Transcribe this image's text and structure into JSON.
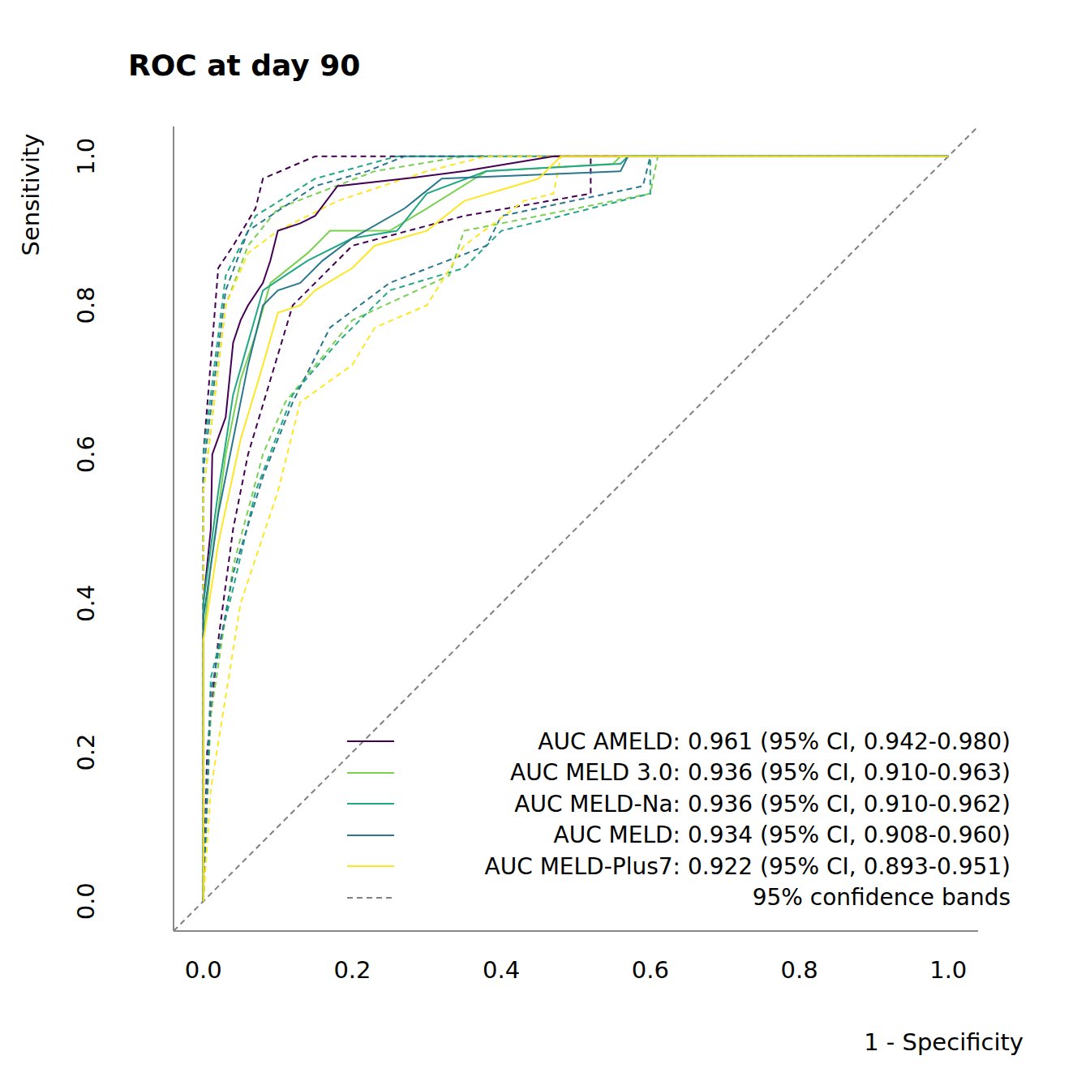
{
  "chart_data": {
    "type": "line",
    "title": "ROC at day 90",
    "x_label": "1 - Specificity",
    "y_label": "Sensitivity",
    "xlim": [
      -0.04,
      1.04
    ],
    "ylim": [
      -0.04,
      1.04
    ],
    "xticks": [
      {
        "value": 0,
        "label": "0.0"
      },
      {
        "value": 0.2,
        "label": "0.2"
      },
      {
        "value": 0.4,
        "label": "0.4"
      },
      {
        "value": 0.6,
        "label": "0.6"
      },
      {
        "value": 0.8,
        "label": "0.8"
      },
      {
        "value": 1,
        "label": "1.0"
      }
    ],
    "yticks": [
      {
        "value": 0,
        "label": "0.0"
      },
      {
        "value": 0.2,
        "label": "0.2"
      },
      {
        "value": 0.4,
        "label": "0.4"
      },
      {
        "value": 0.6,
        "label": "0.6"
      },
      {
        "value": 0.8,
        "label": "0.8"
      },
      {
        "value": 1,
        "label": "1.0"
      }
    ],
    "legend": "lower right",
    "band_label": "95% confidence bands",
    "series": [
      {
        "name": "AUC AMELD: 0.961 (95% CI, 0.942-0.980)",
        "color": "#440154",
        "x": [
          0,
          0,
          0.01,
          0.012,
          0.03,
          0.04,
          0.05,
          0.06,
          0.08,
          0.09,
          0.1,
          0.13,
          0.15,
          0.18,
          0.27,
          0.35,
          0.47,
          1
        ],
        "values": [
          0,
          0.4,
          0.5,
          0.6,
          0.65,
          0.75,
          0.78,
          0.8,
          0.83,
          0.86,
          0.9,
          0.91,
          0.92,
          0.96,
          0.97,
          0.98,
          1,
          1
        ],
        "ci_band": {
          "upper": {
            "x": [
              0,
              0,
              0.02,
              0.04,
              0.07,
              0.08,
              0.15,
              1
            ],
            "values": [
              0,
              0.6,
              0.85,
              0.88,
              0.93,
              0.97,
              1,
              1
            ]
          },
          "lower": {
            "x": [
              0,
              0.005,
              0.02,
              0.04,
              0.06,
              0.09,
              0.12,
              0.2,
              0.35,
              0.52,
              0.52,
              1
            ],
            "values": [
              0,
              0.2,
              0.35,
              0.5,
              0.6,
              0.7,
              0.8,
              0.88,
              0.92,
              0.95,
              1,
              1
            ]
          }
        }
      },
      {
        "name": "AUC MELD 3.0: 0.936 (95% CI, 0.910-0.963)",
        "color": "#7AD151",
        "x": [
          0,
          0,
          0.01,
          0.03,
          0.05,
          0.07,
          0.09,
          0.14,
          0.17,
          0.25,
          0.3,
          0.38,
          0.55,
          0.56,
          1
        ],
        "values": [
          0,
          0.35,
          0.45,
          0.6,
          0.7,
          0.76,
          0.83,
          0.87,
          0.9,
          0.9,
          0.93,
          0.98,
          0.99,
          1,
          1
        ],
        "ci_band": {
          "upper": {
            "x": [
              0,
              0,
              0.03,
              0.06,
              0.1,
              0.23,
              0.35,
              1
            ],
            "values": [
              0,
              0.55,
              0.8,
              0.88,
              0.93,
              0.98,
              1,
              1
            ]
          },
          "lower": {
            "x": [
              0,
              0.01,
              0.04,
              0.08,
              0.11,
              0.2,
              0.33,
              0.35,
              0.6,
              0.61,
              1
            ],
            "values": [
              0,
              0.25,
              0.45,
              0.6,
              0.67,
              0.78,
              0.84,
              0.9,
              0.95,
              1,
              1
            ]
          }
        }
      },
      {
        "name": "AUC MELD-Na: 0.936 (95% CI, 0.910-0.962)",
        "color": "#22A884",
        "x": [
          0,
          0,
          0.02,
          0.04,
          0.06,
          0.08,
          0.11,
          0.14,
          0.2,
          0.26,
          0.3,
          0.38,
          0.56,
          0.57,
          1
        ],
        "values": [
          0,
          0.4,
          0.55,
          0.68,
          0.75,
          0.82,
          0.84,
          0.86,
          0.89,
          0.9,
          0.95,
          0.98,
          0.99,
          1,
          1
        ],
        "ci_band": {
          "upper": {
            "x": [
              0,
              0,
              0.03,
              0.07,
              0.15,
              0.26,
              1
            ],
            "values": [
              0,
              0.6,
              0.84,
              0.92,
              0.97,
              1,
              1
            ]
          },
          "lower": {
            "x": [
              0,
              0.01,
              0.04,
              0.07,
              0.12,
              0.18,
              0.25,
              0.35,
              0.4,
              0.6,
              0.6,
              1
            ],
            "values": [
              0,
              0.3,
              0.42,
              0.55,
              0.68,
              0.75,
              0.82,
              0.85,
              0.9,
              0.95,
              1,
              1
            ]
          }
        }
      },
      {
        "name": "AUC MELD: 0.934 (95% CI, 0.908-0.960)",
        "color": "#2A788E",
        "x": [
          0,
          0,
          0.02,
          0.04,
          0.06,
          0.08,
          0.1,
          0.13,
          0.16,
          0.2,
          0.27,
          0.32,
          0.56,
          0.57,
          1
        ],
        "values": [
          0,
          0.38,
          0.52,
          0.62,
          0.72,
          0.8,
          0.82,
          0.83,
          0.86,
          0.89,
          0.93,
          0.97,
          0.98,
          1,
          1
        ],
        "ci_band": {
          "upper": {
            "x": [
              0,
              0,
              0.03,
              0.06,
              0.15,
              0.22,
              0.27,
              1
            ],
            "values": [
              0,
              0.58,
              0.82,
              0.9,
              0.96,
              0.98,
              1,
              1
            ]
          },
          "lower": {
            "x": [
              0,
              0.01,
              0.04,
              0.08,
              0.12,
              0.17,
              0.25,
              0.38,
              0.4,
              0.59,
              0.6,
              1
            ],
            "values": [
              0,
              0.28,
              0.44,
              0.57,
              0.67,
              0.77,
              0.83,
              0.88,
              0.92,
              0.96,
              1,
              1
            ]
          }
        }
      },
      {
        "name": "AUC MELD-Plus7: 0.922 (95% CI, 0.893-0.951)",
        "color": "#FDE725",
        "x": [
          0,
          0,
          0.02,
          0.05,
          0.08,
          0.1,
          0.13,
          0.15,
          0.2,
          0.23,
          0.3,
          0.35,
          0.45,
          0.47,
          0.48,
          1
        ],
        "values": [
          0,
          0.35,
          0.48,
          0.62,
          0.72,
          0.79,
          0.8,
          0.82,
          0.85,
          0.88,
          0.9,
          0.94,
          0.97,
          0.99,
          1,
          1
        ],
        "ci_band": {
          "upper": {
            "x": [
              0,
              0,
              0.03,
              0.06,
              0.1,
              0.18,
              0.3,
              0.38,
              1
            ],
            "values": [
              0,
              0.55,
              0.8,
              0.87,
              0.9,
              0.94,
              0.98,
              1,
              1
            ]
          },
          "lower": {
            "x": [
              0,
              0.01,
              0.05,
              0.1,
              0.13,
              0.2,
              0.23,
              0.3,
              0.35,
              0.43,
              0.47,
              0.48,
              1
            ],
            "values": [
              0,
              0.15,
              0.4,
              0.55,
              0.67,
              0.72,
              0.77,
              0.8,
              0.88,
              0.94,
              0.95,
              1,
              1
            ]
          }
        }
      }
    ]
  }
}
